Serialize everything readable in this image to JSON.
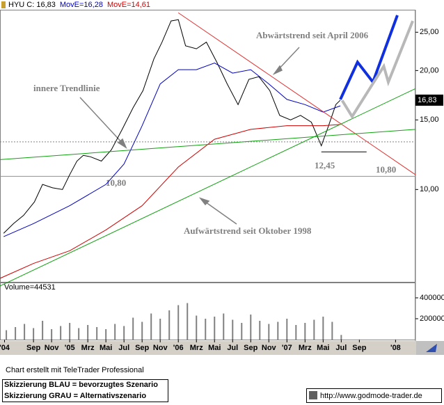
{
  "chart_data": [
    {
      "type": "line",
      "log_scale": true,
      "series": [
        {
          "name": "HYU C: 16,83",
          "color": "#000000",
          "line_width": 1,
          "x": [
            4.7,
            5.8,
            6.9,
            8.1,
            9,
            10.1,
            11.2,
            12,
            12.8,
            13.5,
            14.3,
            15.5,
            16.6,
            17.8,
            19,
            20.1,
            21.3,
            22.2,
            23.2,
            24,
            24.8,
            26,
            27.1,
            28.3,
            29.4,
            30.6,
            31.8,
            32.9,
            34.1,
            35.2,
            36.4,
            37.5,
            38.7,
            39.8,
            40.6,
            41.4,
            41.9
          ],
          "values": [
            7.75,
            8.2,
            8.6,
            9.3,
            10.3,
            10.1,
            10,
            10.9,
            11.8,
            12.2,
            12.1,
            11.8,
            12.6,
            14.2,
            16.1,
            17.8,
            21.4,
            23.6,
            26.7,
            26.9,
            23.1,
            22.7,
            23.6,
            20.9,
            18.5,
            16.4,
            19,
            19.3,
            17.8,
            15.4,
            15,
            15.4,
            14.8,
            12.9,
            14.5,
            16.4,
            16.83
          ]
        },
        {
          "name": "MovE=16,28",
          "color": "#0000c0",
          "line_width": 1,
          "x": [
            4.7,
            8,
            12,
            16,
            18,
            20,
            22,
            24,
            26,
            28,
            30,
            32,
            34,
            36,
            38,
            40,
            41.9
          ],
          "values": [
            7.6,
            8.2,
            9.1,
            10.3,
            11.6,
            14.5,
            18.5,
            20.1,
            20.1,
            20.9,
            19.7,
            20.1,
            18.5,
            16.9,
            16.4,
            15.7,
            16.28
          ]
        },
        {
          "name": "MovE=14,61",
          "color": "#d00000",
          "line_width": 1,
          "x": [
            4.3,
            8,
            12,
            16,
            20,
            24,
            28,
            32,
            36,
            40,
            41.9
          ],
          "values": [
            5.96,
            6.5,
            7,
            7.9,
            9.1,
            11.4,
            13.4,
            14.2,
            14.5,
            14.5,
            14.61
          ]
        },
        {
          "color": "#e03030",
          "line_width": 1,
          "x": [
            24,
            50.2
          ],
          "values": [
            28.0,
            10.9
          ]
        },
        {
          "color": "#10a010",
          "line_width": 1,
          "x": [
            4.3,
            50.2
          ],
          "values": [
            5.7,
            18.0
          ]
        },
        {
          "color": "#10a010",
          "line_width": 1,
          "x": [
            4.3,
            50.2
          ],
          "values": [
            11.9,
            14.2
          ]
        },
        {
          "color": "#1030e0",
          "line_width": 4,
          "x": [
            41.9,
            43.8,
            45.5,
            48.2
          ],
          "values": [
            16.9,
            21.0,
            18.7,
            27.6
          ]
        },
        {
          "color": "#b8b8b8",
          "line_width": 4,
          "x": [
            42.1,
            43.2,
            46.7,
            47.2,
            49.9
          ],
          "values": [
            16.8,
            15.3,
            20.5,
            18.7,
            26.7
          ]
        }
      ],
      "last_label": {
        "value": 16.83,
        "label": "16,83"
      },
      "levels": [
        {
          "value": 13.2,
          "color": "#808080",
          "dashed": true
        },
        {
          "value": 10.8,
          "label": "10,80",
          "color": "#909090"
        },
        {
          "value": 12.45,
          "label": "12,45",
          "color": "#000000",
          "x": [
            39.8,
            44.8
          ]
        }
      ],
      "annotations": [
        "Abwärtstrend seit April 2006",
        "innere Trendlinie",
        "Aufwärtstrend seit Oktober 1998"
      ],
      "xlim": [
        4.3,
        50.2
      ],
      "xticks": [
        {
          "value": 4.8,
          "label": "'04"
        },
        {
          "value": 8,
          "label": "Sep"
        },
        {
          "value": 10,
          "label": "Nov"
        },
        {
          "value": 12,
          "label": "'05"
        },
        {
          "value": 14,
          "label": "Mrz"
        },
        {
          "value": 16,
          "label": "Mai"
        },
        {
          "value": 18,
          "label": "Jul"
        },
        {
          "value": 20,
          "label": "Sep"
        },
        {
          "value": 22,
          "label": "Nov"
        },
        {
          "value": 24,
          "label": "'06"
        },
        {
          "value": 26,
          "label": "Mrz"
        },
        {
          "value": 28,
          "label": "Mai"
        },
        {
          "value": 30,
          "label": "Jul"
        },
        {
          "value": 32,
          "label": "Sep"
        },
        {
          "value": 34,
          "label": "Nov"
        },
        {
          "value": 36,
          "label": "'07"
        },
        {
          "value": 38,
          "label": "Mrz"
        },
        {
          "value": 40,
          "label": "Mai"
        },
        {
          "value": 42,
          "label": "Jul"
        },
        {
          "value": 44,
          "label": "Sep"
        },
        {
          "value": 48,
          "label": "'08"
        }
      ],
      "ylim": [
        5.84,
        28.5
      ],
      "yticks": [
        {
          "value": 25,
          "label": "25,00"
        },
        {
          "value": 20,
          "label": "20,00"
        },
        {
          "value": 15,
          "label": "15,00"
        },
        {
          "value": 10,
          "label": "10,00"
        }
      ]
    },
    {
      "type": "bar",
      "title": "Volume=44531",
      "color": "#808080",
      "x": [
        5,
        6,
        7,
        8,
        9,
        10,
        11,
        12,
        13,
        14,
        15,
        16,
        17,
        18,
        19,
        20,
        21,
        22,
        23,
        24,
        25,
        26,
        27,
        28,
        29,
        30,
        31,
        32,
        33,
        34,
        35,
        36,
        37,
        38,
        39,
        40,
        41,
        42
      ],
      "values": [
        90000,
        120000,
        150000,
        110000,
        180000,
        100000,
        130000,
        160000,
        110000,
        140000,
        120000,
        100000,
        150000,
        130000,
        210000,
        170000,
        250000,
        200000,
        280000,
        330000,
        350000,
        230000,
        200000,
        220000,
        250000,
        190000,
        160000,
        240000,
        180000,
        150000,
        170000,
        200000,
        140000,
        160000,
        190000,
        220000,
        170000,
        44531
      ],
      "xlim": [
        4.3,
        50.2
      ],
      "ylim": [
        0,
        540000
      ],
      "yticks": [
        200000,
        400000
      ]
    }
  ],
  "footer": {
    "credit": "Chart erstellt mit TeleTrader Professional",
    "legend": [
      "Skizzierung BLAU = bevorzugtes Szenario",
      "Skizzierung GRAU = Alternativszenario"
    ],
    "url": "http://www.godmode-trader.de"
  }
}
